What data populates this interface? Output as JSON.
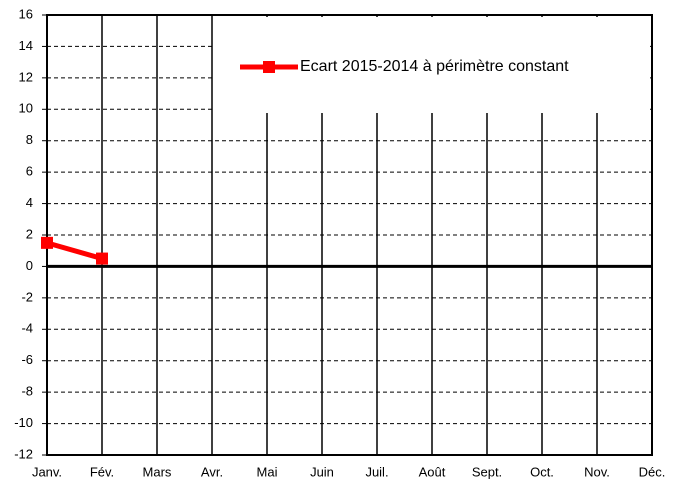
{
  "chart_data": {
    "type": "line",
    "categories": [
      "Janv.",
      "Fév.",
      "Mars",
      "Avr.",
      "Mai",
      "Juin",
      "Juil.",
      "Août",
      "Sept.",
      "Oct.",
      "Nov.",
      "Déc."
    ],
    "series": [
      {
        "name": "Ecart 2015-2014 à périmètre constant",
        "color": "#ff0000",
        "values": [
          1.5,
          0.5,
          null,
          null,
          null,
          null,
          null,
          null,
          null,
          null,
          null,
          null
        ]
      }
    ],
    "ylim": [
      -12,
      16
    ],
    "yticks": [
      -12,
      -10,
      -8,
      -6,
      -4,
      -2,
      0,
      2,
      4,
      6,
      8,
      10,
      12,
      14,
      16
    ],
    "grid": true,
    "legend": "upper right"
  }
}
